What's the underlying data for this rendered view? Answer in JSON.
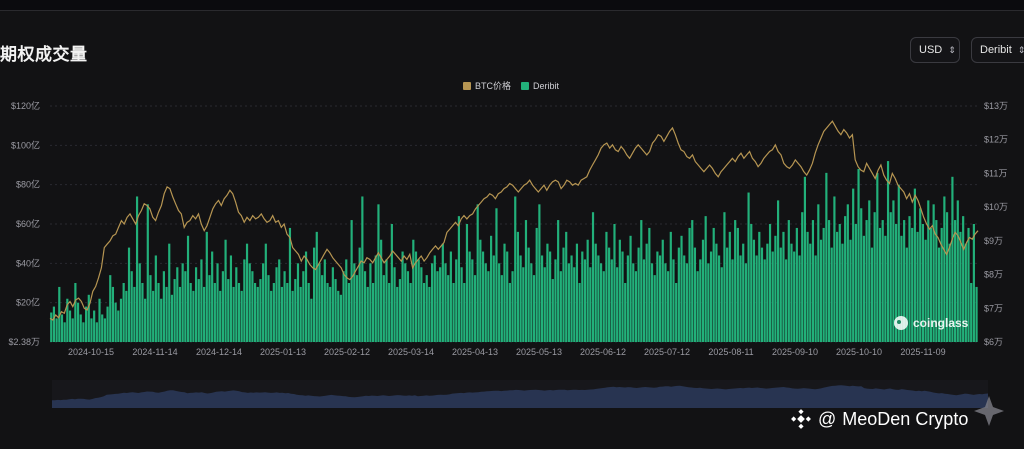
{
  "title": "期权成交量",
  "controls": {
    "currency": "USD",
    "exchange": "Deribit"
  },
  "legend": [
    {
      "name": "BTC价格",
      "color": "#b69552"
    },
    {
      "name": "Deribit",
      "color": "#22b07a"
    }
  ],
  "brand_mark": "coinglass",
  "watermark": {
    "at": "@",
    "name": "MeoDen Crypto"
  },
  "chart_data": {
    "type": "bar",
    "title": "期权成交量",
    "x_tick_labels": [
      "2024-10-15",
      "2024-11-14",
      "2024-12-14",
      "2025-01-13",
      "2025-02-12",
      "2025-03-14",
      "2025-04-13",
      "2025-05-13",
      "2025-06-12",
      "2025-07-12",
      "2025-08-11",
      "2025-09-10",
      "2025-10-10",
      "2025-11-09"
    ],
    "y_left_ticks": [
      "$2.38万",
      "$20亿",
      "$40亿",
      "$60亿",
      "$80亿",
      "$100亿",
      "$120亿"
    ],
    "y_left_range": [
      0,
      120
    ],
    "y_left_unit": "亿 USD",
    "y_right_ticks": [
      "$6万",
      "$7万",
      "$8万",
      "$9万",
      "$10万",
      "$11万",
      "$12万",
      "$13万"
    ],
    "y_right_range": [
      60000,
      130000
    ],
    "x_range": [
      "2024-10-07",
      "2025-11-21"
    ],
    "grid": "horizontal",
    "legend_position": "top-center",
    "series": [
      {
        "name": "Deribit",
        "kind": "bar",
        "axis": "left",
        "color": "#22b07a",
        "values": [
          15,
          18,
          12,
          28,
          14,
          10,
          22,
          16,
          12,
          30,
          20,
          14,
          10,
          18,
          24,
          12,
          16,
          10,
          22,
          14,
          12,
          18,
          34,
          28,
          20,
          16,
          22,
          30,
          26,
          48,
          36,
          28,
          74,
          40,
          30,
          22,
          70,
          34,
          26,
          44,
          30,
          22,
          36,
          28,
          50,
          24,
          32,
          38,
          28,
          40,
          36,
          54,
          30,
          26,
          38,
          32,
          42,
          28,
          56,
          34,
          46,
          30,
          40,
          26,
          36,
          52,
          32,
          44,
          28,
          38,
          30,
          26,
          42,
          50,
          40,
          36,
          30,
          28,
          32,
          40,
          50,
          34,
          26,
          30,
          38,
          42,
          28,
          36,
          30,
          58,
          26,
          32,
          40,
          28,
          36,
          46,
          30,
          22,
          48,
          56,
          40,
          34,
          42,
          30,
          28,
          38,
          32,
          26,
          24,
          36,
          42,
          30,
          62,
          40,
          34,
          48,
          74,
          36,
          28,
          40,
          30,
          44,
          70,
          52,
          34,
          42,
          30,
          60,
          38,
          28,
          32,
          46,
          40,
          36,
          30,
          52,
          46,
          42,
          38,
          30,
          34,
          28,
          40,
          44,
          36,
          38,
          50,
          40,
          34,
          46,
          30,
          42,
          64,
          38,
          30,
          60,
          46,
          42,
          34,
          70,
          52,
          46,
          40,
          36,
          54,
          44,
          68,
          40,
          34,
          50,
          46,
          30,
          36,
          74,
          56,
          44,
          38,
          62,
          48,
          40,
          34,
          58,
          70,
          44,
          38,
          50,
          46,
          32,
          42,
          62,
          36,
          48,
          56,
          40,
          44,
          38,
          50,
          30,
          46,
          42,
          52,
          38,
          66,
          50,
          44,
          40,
          36,
          56,
          48,
          42,
          60,
          38,
          52,
          46,
          30,
          44,
          54,
          40,
          36,
          48,
          62,
          42,
          50,
          58,
          40,
          34,
          46,
          44,
          52,
          40,
          36,
          56,
          42,
          30,
          48,
          54,
          44,
          40,
          58,
          62,
          48,
          36,
          42,
          52,
          64,
          40,
          46,
          58,
          50,
          44,
          38,
          66,
          48,
          56,
          42,
          62,
          58,
          44,
          50,
          40,
          76,
          60,
          52,
          44,
          56,
          48,
          42,
          50,
          60,
          46,
          54,
          72,
          48,
          56,
          42,
          62,
          50,
          46,
          58,
          44,
          66,
          84,
          56,
          50,
          62,
          44,
          70,
          52,
          58,
          86,
          62,
          48,
          74,
          56,
          60,
          50,
          64,
          70,
          52,
          78,
          60,
          88,
          68,
          54,
          62,
          72,
          48,
          66,
          86,
          58,
          62,
          54,
          92,
          66,
          72,
          60,
          80,
          54,
          62,
          48,
          64,
          58,
          78,
          56,
          68,
          60,
          52,
          72,
          58,
          70,
          62,
          48,
          58,
          74,
          66,
          50,
          84,
          62,
          72,
          56,
          64,
          50,
          58,
          30,
          60,
          28
        ]
      },
      {
        "name": "BTC价格",
        "kind": "line",
        "axis": "right",
        "color": "#b69552",
        "values": [
          67000,
          66500,
          68000,
          67200,
          69000,
          68500,
          71000,
          72000,
          70500,
          72500,
          73000,
          72000,
          70000,
          69500,
          71500,
          75000,
          76500,
          79000,
          82000,
          88000,
          89000,
          90000,
          91500,
          92000,
          94000,
          96000,
          95000,
          97000,
          98000,
          96500,
          95000,
          97500,
          99000,
          101000,
          100500,
          99500,
          97000,
          96000,
          98500,
          100500,
          104000,
          106000,
          105500,
          103000,
          101000,
          99000,
          98000,
          94000,
          95500,
          96000,
          97500,
          96500,
          98000,
          95000,
          93000,
          94500,
          97000,
          99500,
          101000,
          102000,
          100500,
          102500,
          103500,
          105000,
          104000,
          101500,
          98500,
          97500,
          95500,
          97000,
          96000,
          97500,
          96500,
          97000,
          98000,
          96500,
          95500,
          96000,
          97500,
          95500,
          96000,
          94000,
          95000,
          92000,
          91000,
          88000,
          87000,
          86000,
          84000,
          85500,
          84500,
          83000,
          82000,
          81500,
          83000,
          84500,
          86000,
          87500,
          86500,
          85000,
          84000,
          83000,
          82000,
          80000,
          79000,
          78500,
          79500,
          81000,
          82500,
          84000,
          83500,
          85000,
          84500,
          83500,
          85000,
          86500,
          85000,
          83500,
          84500,
          85500,
          87000,
          86000,
          85000,
          84000,
          85500,
          84500,
          86000,
          82000,
          83500,
          84500,
          85500,
          84000,
          85000,
          86500,
          87500,
          88500,
          87500,
          88500,
          89500,
          92500,
          93500,
          94500,
          95500,
          94500,
          96500,
          97500,
          96500,
          97500,
          98000,
          99500,
          100500,
          101500,
          102500,
          103000,
          104000,
          103500,
          102500,
          104000,
          104500,
          105500,
          106000,
          107000,
          106500,
          105500,
          104500,
          105500,
          106500,
          107000,
          108000,
          106500,
          105500,
          104500,
          105500,
          106500,
          105000,
          106500,
          107500,
          108000,
          107500,
          105500,
          106500,
          108000,
          107500,
          106500,
          107000,
          106500,
          108000,
          108500,
          109000,
          111000,
          112500,
          114000,
          115500,
          117500,
          118500,
          119000,
          117500,
          118500,
          117000,
          116500,
          118000,
          117000,
          115500,
          114500,
          116000,
          117500,
          118500,
          117500,
          116500,
          115500,
          116500,
          119000,
          120000,
          121500,
          121000,
          119500,
          121000,
          122500,
          123500,
          121500,
          119000,
          117000,
          116500,
          115000,
          114500,
          115500,
          113500,
          112500,
          111500,
          110500,
          111500,
          112500,
          111500,
          110000,
          109000,
          110500,
          111500,
          112500,
          113500,
          114500,
          113500,
          115000,
          116000,
          114500,
          115500,
          116500,
          114500,
          113500,
          112000,
          113000,
          114500,
          115500,
          116500,
          117000,
          118500,
          116500,
          115500,
          113000,
          112000,
          111500,
          112500,
          114000,
          113000,
          112000,
          110500,
          109500,
          111000,
          113000,
          116000,
          118500,
          120500,
          122500,
          123500,
          124500,
          125500,
          124000,
          122500,
          121500,
          123000,
          122000,
          120500,
          121500,
          114000,
          112000,
          111000,
          110500,
          113000,
          111500,
          110000,
          108500,
          111000,
          112500,
          109500,
          108000,
          107000,
          110000,
          108500,
          106500,
          105500,
          104500,
          102500,
          104000,
          101500,
          103500,
          102000,
          99500,
          97000,
          95000,
          93500,
          94500,
          92000,
          91000,
          89000,
          87500,
          86000,
          88000,
          90500,
          92500,
          91500,
          89500,
          87500,
          89500,
          91000,
          90500,
          92000,
          93000
        ]
      }
    ]
  }
}
